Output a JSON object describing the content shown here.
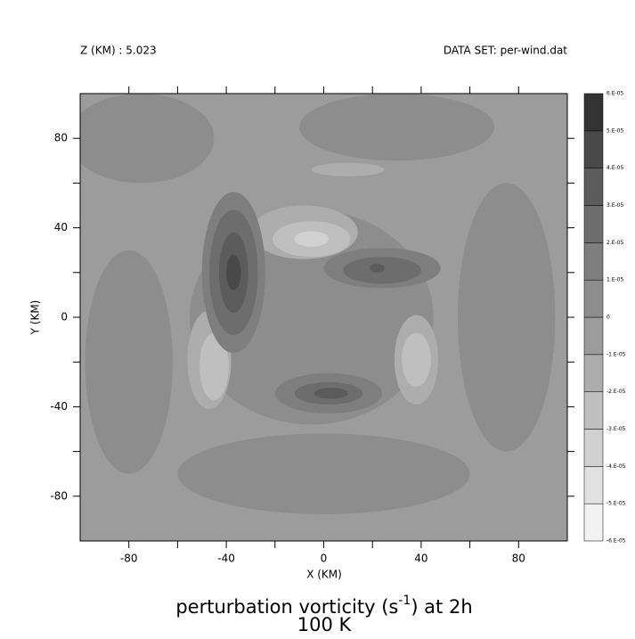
{
  "chart_data": {
    "type": "contour",
    "header_left": "Z (KM) : 5.023",
    "header_right": "DATA SET: per-wind.dat",
    "title_parts": [
      "perturbation vorticity (s",
      "-1",
      ") at 2h"
    ],
    "subtitle": "100 K",
    "xlabel": "X (KM)",
    "ylabel": "Y (KM)",
    "xlim": [
      -100,
      100
    ],
    "ylim": [
      -100,
      100
    ],
    "xticks": [
      -80,
      -40,
      0,
      40,
      80
    ],
    "yticks": [
      -80,
      -40,
      0,
      40,
      80
    ],
    "xminor_ticks": [
      -60,
      -20,
      20,
      60
    ],
    "yminor_ticks": [
      -60,
      -20,
      20,
      60
    ],
    "levels": [
      {
        "value": -6e-05,
        "label": "-6.E-05"
      },
      {
        "value": -5e-05,
        "label": "-5.E-05"
      },
      {
        "value": -4e-05,
        "label": "-4.E-05"
      },
      {
        "value": -3e-05,
        "label": "-3.E-05"
      },
      {
        "value": -2e-05,
        "label": "-2.E-05"
      },
      {
        "value": -1e-05,
        "label": "-1.E-05"
      },
      0,
      {
        "value": 1e-05,
        "label": "1.E-05"
      },
      {
        "value": 2e-05,
        "label": "2.E-05"
      },
      {
        "value": 3e-05,
        "label": "3.E-05"
      },
      {
        "value": 4e-05,
        "label": "4.E-05"
      },
      {
        "value": 5e-05,
        "label": "5.E-05"
      },
      {
        "value": 6e-05,
        "label": "6.E-05"
      }
    ],
    "colors": [
      "#f2f2f2",
      "#e2e2e2",
      "#d1d1d1",
      "#bfbfbf",
      "#adadad",
      "#9c9c9c",
      "#8d8d8d",
      "#7e7e7e",
      "#6d6d6d",
      "#5c5c5c",
      "#494949",
      "#333333"
    ],
    "background_level": -5e-06,
    "features": [
      {
        "x": -75,
        "y": 80,
        "rx": 30,
        "ry": 20,
        "level": 5e-06
      },
      {
        "x": 30,
        "y": 85,
        "rx": 40,
        "ry": 15,
        "level": 5e-06
      },
      {
        "x": 75,
        "y": 0,
        "rx": 20,
        "ry": 60,
        "level": 5e-06
      },
      {
        "x": -80,
        "y": -20,
        "rx": 18,
        "ry": 50,
        "level": 5e-06
      },
      {
        "x": 0,
        "y": -70,
        "rx": 60,
        "ry": 18,
        "level": 5e-06
      },
      {
        "x": -5,
        "y": 0,
        "rx": 50,
        "ry": 48,
        "level": 5e-06
      },
      {
        "x": -8,
        "y": 38,
        "rx": 22,
        "ry": 12,
        "level": -1.5e-05
      },
      {
        "x": -5,
        "y": 35,
        "rx": 16,
        "ry": 8,
        "level": -2.5e-05
      },
      {
        "x": -5,
        "y": 35,
        "rx": 7,
        "ry": 3.5,
        "level": -3.5e-05
      },
      {
        "x": 10,
        "y": 66,
        "rx": 15,
        "ry": 3,
        "level": -1.5e-05
      },
      {
        "x": -47,
        "y": -19,
        "rx": 9,
        "ry": 22,
        "level": -1.5e-05
      },
      {
        "x": -45,
        "y": -22,
        "rx": 6,
        "ry": 15,
        "level": -2.5e-05
      },
      {
        "x": 38,
        "y": -19,
        "rx": 9,
        "ry": 20,
        "level": -1.5e-05
      },
      {
        "x": 38,
        "y": -19,
        "rx": 6,
        "ry": 12,
        "level": -2.5e-05
      },
      {
        "x": -37,
        "y": 20,
        "rx": 13,
        "ry": 36,
        "level": 1.5e-05
      },
      {
        "x": -37,
        "y": 20,
        "rx": 10,
        "ry": 28,
        "level": 2.5e-05
      },
      {
        "x": -37,
        "y": 20,
        "rx": 6,
        "ry": 18,
        "level": 3.5e-05
      },
      {
        "x": -37,
        "y": 20,
        "rx": 3,
        "ry": 8,
        "level": 4.5e-05
      },
      {
        "x": 24,
        "y": 22,
        "rx": 24,
        "ry": 9,
        "level": 1.5e-05
      },
      {
        "x": 24,
        "y": 21,
        "rx": 16,
        "ry": 6,
        "level": 2.5e-05
      },
      {
        "x": 22,
        "y": 22,
        "rx": 3,
        "ry": 2,
        "level": 3.5e-05
      },
      {
        "x": 2,
        "y": -34,
        "rx": 22,
        "ry": 9,
        "level": 1.5e-05
      },
      {
        "x": 2,
        "y": -34,
        "rx": 14,
        "ry": 5,
        "level": 2.5e-05
      },
      {
        "x": 3,
        "y": -34,
        "rx": 7,
        "ry": 2.5,
        "level": 3.5e-05
      }
    ]
  }
}
